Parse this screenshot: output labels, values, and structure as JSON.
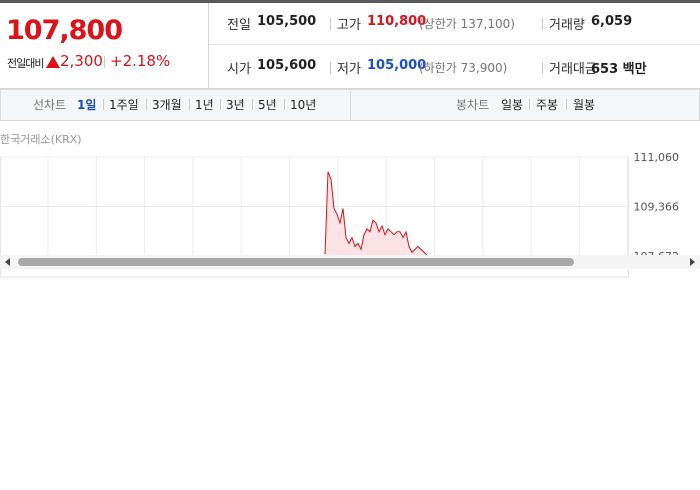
{
  "header": {
    "price": "107,800",
    "change_label": "전일대비",
    "change": "2,300",
    "change_rate": "+2.18%"
  },
  "info": {
    "rows": [
      [
        {
          "label": "전일",
          "value": "105,500"
        },
        {
          "label": "고가",
          "value": "110,800",
          "note": "(상한가 137,100)"
        },
        {
          "label": "거래량",
          "value": "6,059"
        }
      ],
      [
        {
          "label": "시가",
          "value": "105,600"
        },
        {
          "label": "저가",
          "value": "105,000",
          "note": "(하한가 73,900)"
        },
        {
          "label": "거래대금",
          "value": "653 백만"
        }
      ]
    ]
  },
  "tabs": {
    "line_label": "선차트",
    "line_items": [
      "1일",
      "1주일",
      "3개월",
      "1년",
      "3년",
      "5년",
      "10년"
    ],
    "candle_label": "봉차트",
    "candle_items": [
      "일봉",
      "주봉",
      "월봉"
    ]
  },
  "chart": {
    "source": "한국거래소(KRX)",
    "color": "#e0101a",
    "ylim": [
      107672,
      111060
    ],
    "yticks": [
      {
        "value": 111060,
        "label": "111,060"
      },
      {
        "value": 109366,
        "label": "109,366"
      },
      {
        "value": 107672,
        "label": "107,672"
      }
    ],
    "values": [
      107740,
      110552,
      110300,
      109300,
      109100,
      108800,
      109300,
      108300,
      108100,
      108300,
      108000,
      108100,
      107900,
      108400,
      108600,
      108500,
      108900,
      108800,
      108500,
      108700,
      108400,
      108600,
      108500,
      108400,
      108500,
      108500,
      108300,
      108500,
      108000,
      107800,
      107900,
      108000,
      107900,
      107800,
      107700
    ]
  }
}
